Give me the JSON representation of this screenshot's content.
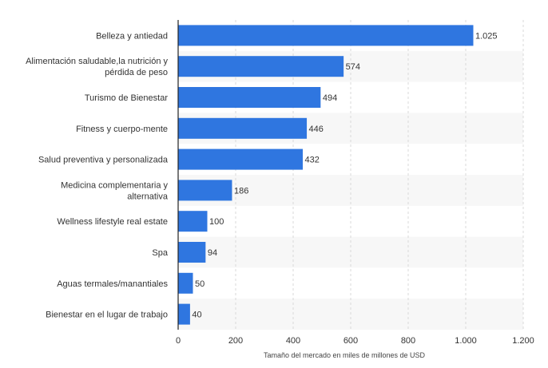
{
  "chart_data": {
    "type": "bar",
    "orientation": "horizontal",
    "categories": [
      [
        "Belleza y antiedad"
      ],
      [
        "Alimentación saludable,la nutrición y",
        "pérdida de peso"
      ],
      [
        "Turismo de Bienestar"
      ],
      [
        "Fitness y cuerpo-mente"
      ],
      [
        "Salud preventiva y personalizada"
      ],
      [
        "Medicina complementaria y",
        "alternativa"
      ],
      [
        "Wellness lifestyle real estate"
      ],
      [
        "Spa"
      ],
      [
        "Aguas termales/manantiales"
      ],
      [
        "Bienestar en el lugar de trabajo"
      ]
    ],
    "values": [
      1025,
      574,
      494,
      446,
      432,
      186,
      100,
      94,
      50,
      40
    ],
    "value_labels": [
      "1.025",
      "574",
      "494",
      "446",
      "432",
      "186",
      "100",
      "94",
      "50",
      "40"
    ],
    "x_ticks": [
      {
        "value": 0,
        "label": "0"
      },
      {
        "value": 200,
        "label": "200"
      },
      {
        "value": 400,
        "label": "400"
      },
      {
        "value": 600,
        "label": "600"
      },
      {
        "value": 800,
        "label": "800"
      },
      {
        "value": 1000,
        "label": "1.000"
      },
      {
        "value": 1200,
        "label": "1.200"
      }
    ],
    "xlim": [
      0,
      1200
    ],
    "xlabel": "Tamaño del mercado en miles de millones de USD",
    "ylabel": "",
    "title": "",
    "grid": "vertical dashed",
    "colors": {
      "bar": "#2f76e0",
      "band": "#f7f7f7",
      "grid": "#d8d8d8",
      "axis": "#222222"
    }
  }
}
